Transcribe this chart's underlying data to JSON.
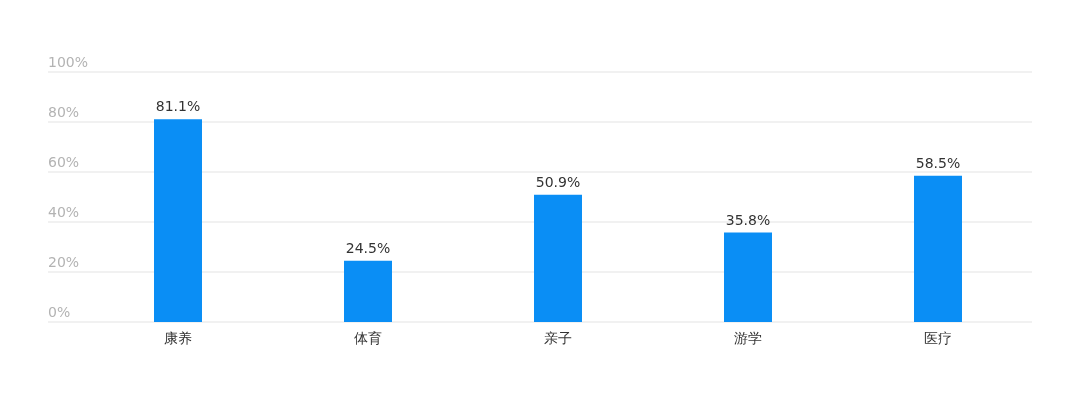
{
  "chart_data": {
    "type": "bar",
    "categories": [
      "康养",
      "体育",
      "亲子",
      "游学",
      "医疗"
    ],
    "values": [
      81.1,
      24.5,
      50.9,
      35.8,
      58.5
    ],
    "value_labels": [
      "81.1%",
      "24.5%",
      "50.9%",
      "35.8%",
      "58.5%"
    ],
    "color": "#0a8ef5",
    "ylim": [
      0,
      100
    ],
    "yticks": [
      {
        "value": 0,
        "label": "0%"
      },
      {
        "value": 20,
        "label": "20%"
      },
      {
        "value": 40,
        "label": "40%"
      },
      {
        "value": 60,
        "label": "60%"
      },
      {
        "value": 80,
        "label": "80%"
      },
      {
        "value": 100,
        "label": "100%"
      }
    ],
    "grid": "y"
  }
}
